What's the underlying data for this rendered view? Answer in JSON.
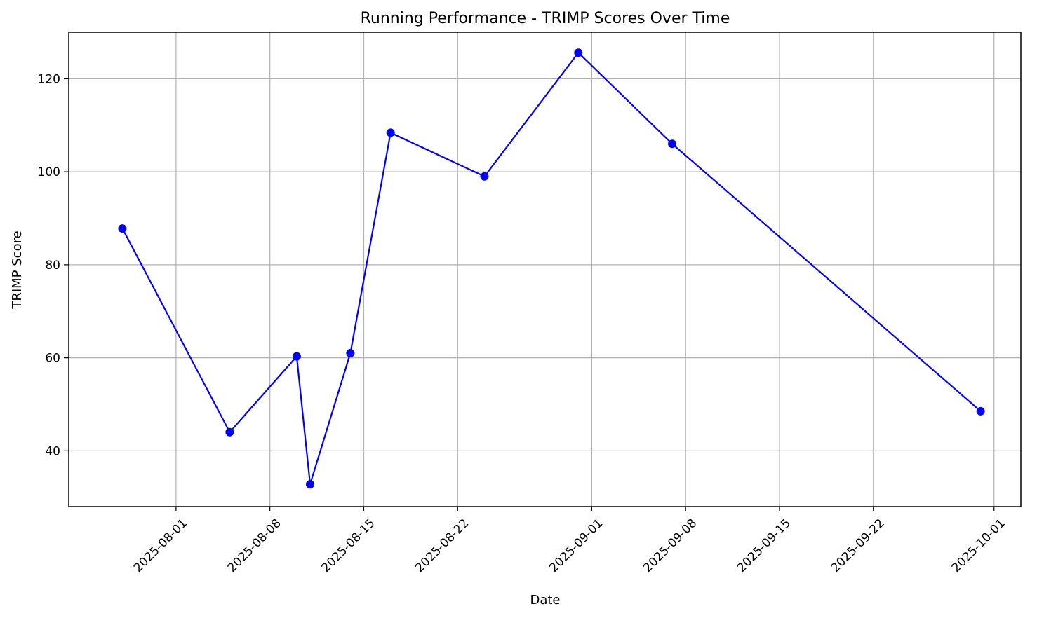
{
  "chart_data": {
    "type": "line",
    "title": "Running Performance - TRIMP Scores Over Time",
    "xlabel": "Date",
    "ylabel": "TRIMP Score",
    "x_type": "date",
    "xlim": [
      "2025-07-24",
      "2025-10-03"
    ],
    "ylim": [
      28,
      130
    ],
    "x_ticks": [
      "2025-08-01",
      "2025-08-08",
      "2025-08-15",
      "2025-08-22",
      "2025-09-01",
      "2025-09-08",
      "2025-09-15",
      "2025-09-22",
      "2025-10-01"
    ],
    "y_ticks": [
      40,
      60,
      80,
      100,
      120
    ],
    "grid": true,
    "series": [
      {
        "color": "#0000ff",
        "marker": "circle",
        "points": [
          {
            "x": "2025-07-28",
            "y": 87.8
          },
          {
            "x": "2025-08-05",
            "y": 44.0
          },
          {
            "x": "2025-08-10",
            "y": 60.3
          },
          {
            "x": "2025-08-11",
            "y": 32.8
          },
          {
            "x": "2025-08-14",
            "y": 61.0
          },
          {
            "x": "2025-08-17",
            "y": 108.4
          },
          {
            "x": "2025-08-24",
            "y": 99.0
          },
          {
            "x": "2025-08-31",
            "y": 125.6
          },
          {
            "x": "2025-09-07",
            "y": 106.0
          },
          {
            "x": "2025-09-30",
            "y": 48.5
          }
        ]
      }
    ]
  }
}
